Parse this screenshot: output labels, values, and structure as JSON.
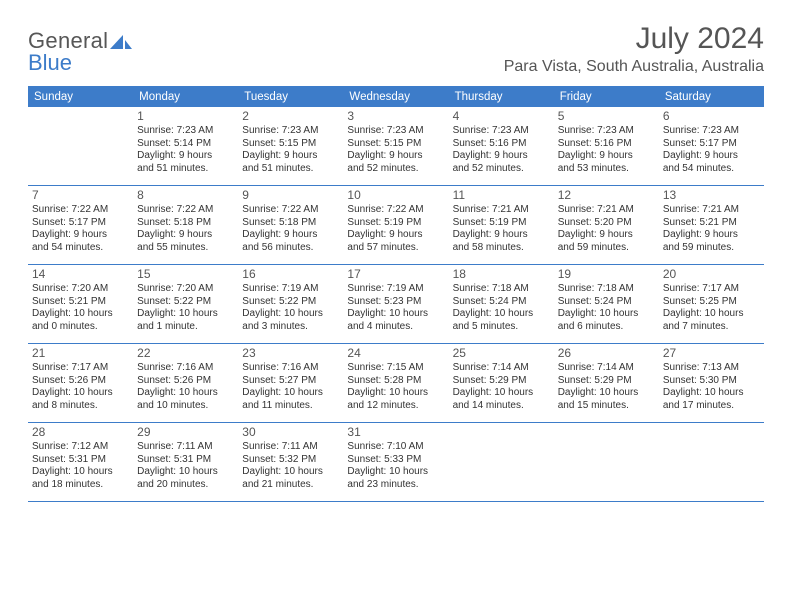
{
  "colors": {
    "accent": "#3d7cc9",
    "text": "#333333",
    "muted": "#575757",
    "bg": "#ffffff"
  },
  "logo": {
    "word1": "General",
    "word2": "Blue"
  },
  "title": "July 2024",
  "location": "Para Vista, South Australia, Australia",
  "dow": [
    "Sunday",
    "Monday",
    "Tuesday",
    "Wednesday",
    "Thursday",
    "Friday",
    "Saturday"
  ],
  "weeks": [
    [
      {
        "n": "",
        "sr": "",
        "ss": "",
        "d1": "",
        "d2": ""
      },
      {
        "n": "1",
        "sr": "Sunrise: 7:23 AM",
        "ss": "Sunset: 5:14 PM",
        "d1": "Daylight: 9 hours",
        "d2": "and 51 minutes."
      },
      {
        "n": "2",
        "sr": "Sunrise: 7:23 AM",
        "ss": "Sunset: 5:15 PM",
        "d1": "Daylight: 9 hours",
        "d2": "and 51 minutes."
      },
      {
        "n": "3",
        "sr": "Sunrise: 7:23 AM",
        "ss": "Sunset: 5:15 PM",
        "d1": "Daylight: 9 hours",
        "d2": "and 52 minutes."
      },
      {
        "n": "4",
        "sr": "Sunrise: 7:23 AM",
        "ss": "Sunset: 5:16 PM",
        "d1": "Daylight: 9 hours",
        "d2": "and 52 minutes."
      },
      {
        "n": "5",
        "sr": "Sunrise: 7:23 AM",
        "ss": "Sunset: 5:16 PM",
        "d1": "Daylight: 9 hours",
        "d2": "and 53 minutes."
      },
      {
        "n": "6",
        "sr": "Sunrise: 7:23 AM",
        "ss": "Sunset: 5:17 PM",
        "d1": "Daylight: 9 hours",
        "d2": "and 54 minutes."
      }
    ],
    [
      {
        "n": "7",
        "sr": "Sunrise: 7:22 AM",
        "ss": "Sunset: 5:17 PM",
        "d1": "Daylight: 9 hours",
        "d2": "and 54 minutes."
      },
      {
        "n": "8",
        "sr": "Sunrise: 7:22 AM",
        "ss": "Sunset: 5:18 PM",
        "d1": "Daylight: 9 hours",
        "d2": "and 55 minutes."
      },
      {
        "n": "9",
        "sr": "Sunrise: 7:22 AM",
        "ss": "Sunset: 5:18 PM",
        "d1": "Daylight: 9 hours",
        "d2": "and 56 minutes."
      },
      {
        "n": "10",
        "sr": "Sunrise: 7:22 AM",
        "ss": "Sunset: 5:19 PM",
        "d1": "Daylight: 9 hours",
        "d2": "and 57 minutes."
      },
      {
        "n": "11",
        "sr": "Sunrise: 7:21 AM",
        "ss": "Sunset: 5:19 PM",
        "d1": "Daylight: 9 hours",
        "d2": "and 58 minutes."
      },
      {
        "n": "12",
        "sr": "Sunrise: 7:21 AM",
        "ss": "Sunset: 5:20 PM",
        "d1": "Daylight: 9 hours",
        "d2": "and 59 minutes."
      },
      {
        "n": "13",
        "sr": "Sunrise: 7:21 AM",
        "ss": "Sunset: 5:21 PM",
        "d1": "Daylight: 9 hours",
        "d2": "and 59 minutes."
      }
    ],
    [
      {
        "n": "14",
        "sr": "Sunrise: 7:20 AM",
        "ss": "Sunset: 5:21 PM",
        "d1": "Daylight: 10 hours",
        "d2": "and 0 minutes."
      },
      {
        "n": "15",
        "sr": "Sunrise: 7:20 AM",
        "ss": "Sunset: 5:22 PM",
        "d1": "Daylight: 10 hours",
        "d2": "and 1 minute."
      },
      {
        "n": "16",
        "sr": "Sunrise: 7:19 AM",
        "ss": "Sunset: 5:22 PM",
        "d1": "Daylight: 10 hours",
        "d2": "and 3 minutes."
      },
      {
        "n": "17",
        "sr": "Sunrise: 7:19 AM",
        "ss": "Sunset: 5:23 PM",
        "d1": "Daylight: 10 hours",
        "d2": "and 4 minutes."
      },
      {
        "n": "18",
        "sr": "Sunrise: 7:18 AM",
        "ss": "Sunset: 5:24 PM",
        "d1": "Daylight: 10 hours",
        "d2": "and 5 minutes."
      },
      {
        "n": "19",
        "sr": "Sunrise: 7:18 AM",
        "ss": "Sunset: 5:24 PM",
        "d1": "Daylight: 10 hours",
        "d2": "and 6 minutes."
      },
      {
        "n": "20",
        "sr": "Sunrise: 7:17 AM",
        "ss": "Sunset: 5:25 PM",
        "d1": "Daylight: 10 hours",
        "d2": "and 7 minutes."
      }
    ],
    [
      {
        "n": "21",
        "sr": "Sunrise: 7:17 AM",
        "ss": "Sunset: 5:26 PM",
        "d1": "Daylight: 10 hours",
        "d2": "and 8 minutes."
      },
      {
        "n": "22",
        "sr": "Sunrise: 7:16 AM",
        "ss": "Sunset: 5:26 PM",
        "d1": "Daylight: 10 hours",
        "d2": "and 10 minutes."
      },
      {
        "n": "23",
        "sr": "Sunrise: 7:16 AM",
        "ss": "Sunset: 5:27 PM",
        "d1": "Daylight: 10 hours",
        "d2": "and 11 minutes."
      },
      {
        "n": "24",
        "sr": "Sunrise: 7:15 AM",
        "ss": "Sunset: 5:28 PM",
        "d1": "Daylight: 10 hours",
        "d2": "and 12 minutes."
      },
      {
        "n": "25",
        "sr": "Sunrise: 7:14 AM",
        "ss": "Sunset: 5:29 PM",
        "d1": "Daylight: 10 hours",
        "d2": "and 14 minutes."
      },
      {
        "n": "26",
        "sr": "Sunrise: 7:14 AM",
        "ss": "Sunset: 5:29 PM",
        "d1": "Daylight: 10 hours",
        "d2": "and 15 minutes."
      },
      {
        "n": "27",
        "sr": "Sunrise: 7:13 AM",
        "ss": "Sunset: 5:30 PM",
        "d1": "Daylight: 10 hours",
        "d2": "and 17 minutes."
      }
    ],
    [
      {
        "n": "28",
        "sr": "Sunrise: 7:12 AM",
        "ss": "Sunset: 5:31 PM",
        "d1": "Daylight: 10 hours",
        "d2": "and 18 minutes."
      },
      {
        "n": "29",
        "sr": "Sunrise: 7:11 AM",
        "ss": "Sunset: 5:31 PM",
        "d1": "Daylight: 10 hours",
        "d2": "and 20 minutes."
      },
      {
        "n": "30",
        "sr": "Sunrise: 7:11 AM",
        "ss": "Sunset: 5:32 PM",
        "d1": "Daylight: 10 hours",
        "d2": "and 21 minutes."
      },
      {
        "n": "31",
        "sr": "Sunrise: 7:10 AM",
        "ss": "Sunset: 5:33 PM",
        "d1": "Daylight: 10 hours",
        "d2": "and 23 minutes."
      },
      {
        "n": "",
        "sr": "",
        "ss": "",
        "d1": "",
        "d2": ""
      },
      {
        "n": "",
        "sr": "",
        "ss": "",
        "d1": "",
        "d2": ""
      },
      {
        "n": "",
        "sr": "",
        "ss": "",
        "d1": "",
        "d2": ""
      }
    ]
  ]
}
